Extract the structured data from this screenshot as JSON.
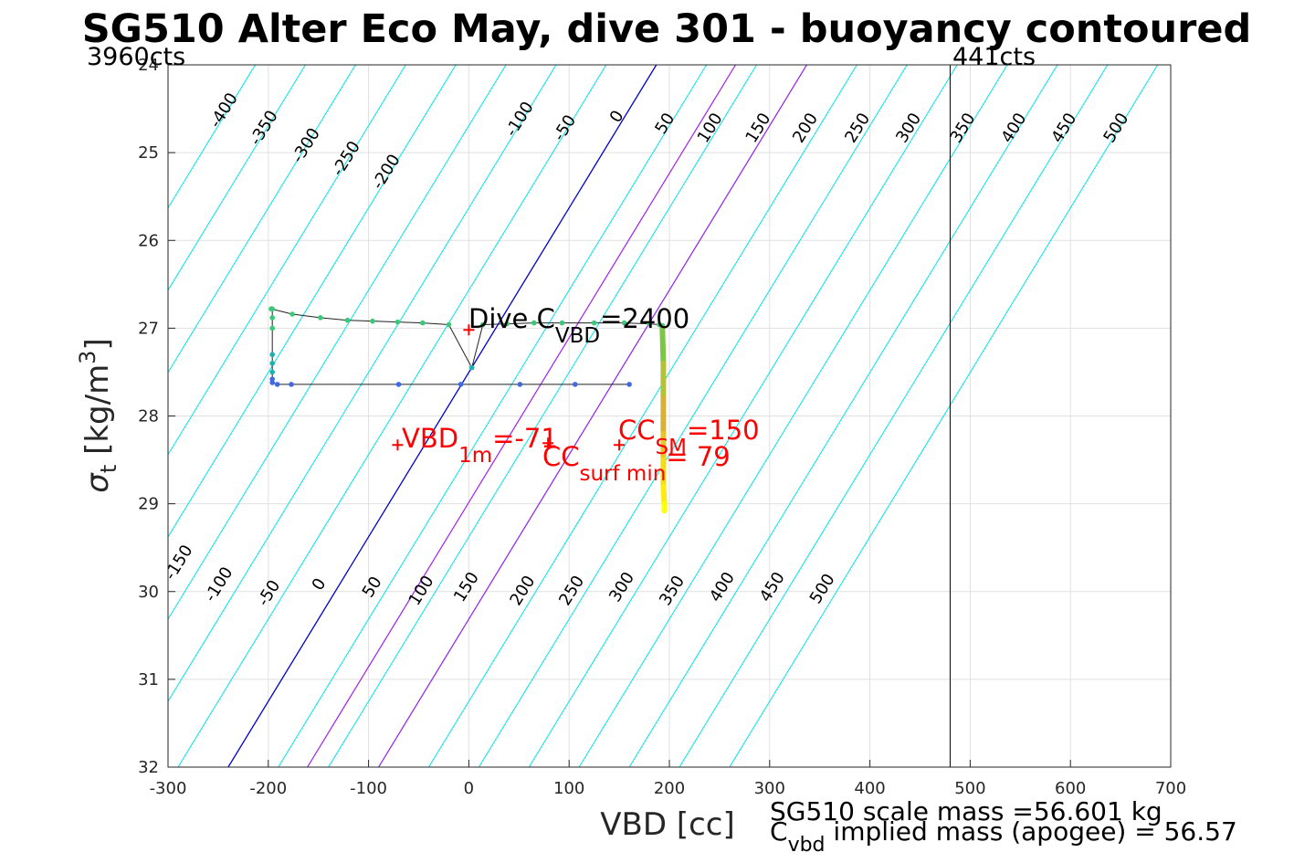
{
  "title": "SG510 Alter Eco May, dive 301 - buoyancy contoured",
  "colors": {
    "contour": "#00e5e5",
    "zero_contour": "#0000cc",
    "highlight_contour": "#a020f0",
    "red": "#ff0000",
    "profile_line": "#222222",
    "vertical_line": "#000000"
  },
  "chart_data": {
    "type": "line",
    "xlabel": "VBD [cc]",
    "ylabel": "σt [kg/m3]",
    "ylabel_parts": {
      "sigma": "σ",
      "sub": "t",
      "unit": " [kg/m",
      "sup": "3",
      "close": "]"
    },
    "xlim": [
      -300,
      700
    ],
    "ylim": [
      24,
      32
    ],
    "y_reversed": true,
    "grid": true,
    "xticks": [
      -300,
      -200,
      -100,
      0,
      100,
      200,
      300,
      400,
      500,
      600,
      700
    ],
    "yticks": [
      24,
      25,
      26,
      27,
      28,
      29,
      30,
      31,
      32
    ],
    "top_left_label": "3960cts",
    "top_right_label": "441cts",
    "vertical_line_x": 480,
    "contours": {
      "levels": [
        -400,
        -350,
        -300,
        -250,
        -200,
        -150,
        -100,
        -50,
        0,
        50,
        100,
        150,
        200,
        250,
        300,
        350,
        400,
        450,
        500
      ],
      "highlight_levels": [
        79,
        150
      ],
      "zero_at_sigma_top": 187,
      "zero_at_sigma_bottom": -240,
      "upper_labels": [
        {
          "text": "-400",
          "x": -240,
          "y": 24.55
        },
        {
          "text": "-350",
          "x": -200,
          "y": 24.75
        },
        {
          "text": "-300",
          "x": -158,
          "y": 24.95
        },
        {
          "text": "-250",
          "x": -118,
          "y": 25.1
        },
        {
          "text": "-200",
          "x": -78,
          "y": 25.25
        },
        {
          "text": "-100",
          "x": 55,
          "y": 24.65
        },
        {
          "text": "-50",
          "x": 100,
          "y": 24.75
        },
        {
          "text": "0",
          "x": 152,
          "y": 24.62
        },
        {
          "text": "50",
          "x": 200,
          "y": 24.7
        },
        {
          "text": "100",
          "x": 245,
          "y": 24.75
        },
        {
          "text": "150",
          "x": 293,
          "y": 24.75
        },
        {
          "text": "200",
          "x": 340,
          "y": 24.75
        },
        {
          "text": "250",
          "x": 392,
          "y": 24.75
        },
        {
          "text": "300",
          "x": 443,
          "y": 24.75
        },
        {
          "text": "350",
          "x": 497,
          "y": 24.75
        },
        {
          "text": "400",
          "x": 548,
          "y": 24.75
        },
        {
          "text": "450",
          "x": 598,
          "y": 24.75
        },
        {
          "text": "500",
          "x": 650,
          "y": 24.75
        }
      ],
      "lower_labels": [
        {
          "text": "-150",
          "x": -285,
          "y": 29.7
        },
        {
          "text": "-100",
          "x": -245,
          "y": 29.95
        },
        {
          "text": "-50",
          "x": -195,
          "y": 30.05
        },
        {
          "text": "0",
          "x": -145,
          "y": 29.95
        },
        {
          "text": "50",
          "x": -92,
          "y": 29.98
        },
        {
          "text": "100",
          "x": -43,
          "y": 30.02
        },
        {
          "text": "150",
          "x": 2,
          "y": 29.98
        },
        {
          "text": "200",
          "x": 58,
          "y": 30.02
        },
        {
          "text": "250",
          "x": 107,
          "y": 30.02
        },
        {
          "text": "300",
          "x": 157,
          "y": 29.98
        },
        {
          "text": "350",
          "x": 207,
          "y": 30.02
        },
        {
          "text": "400",
          "x": 257,
          "y": 29.98
        },
        {
          "text": "450",
          "x": 307,
          "y": 29.98
        },
        {
          "text": "500",
          "x": 357,
          "y": 30.0
        }
      ]
    },
    "series": [
      {
        "name": "dive profile",
        "x": [
          160,
          106,
          51,
          -8,
          -70,
          -177,
          -191,
          -196,
          -196,
          -196,
          -196,
          -196,
          -196,
          -196,
          -196,
          -197,
          -197,
          -176,
          -148,
          -121,
          -96,
          -71,
          -46,
          -20,
          3,
          14,
          38,
          65,
          93,
          125,
          155,
          180,
          190,
          193
        ],
        "y": [
          27.64,
          27.64,
          27.64,
          27.64,
          27.64,
          27.64,
          27.64,
          27.62,
          27.58,
          27.5,
          27.4,
          27.3,
          27.0,
          26.88,
          26.78,
          26.78,
          26.78,
          26.84,
          26.88,
          26.91,
          26.92,
          26.93,
          26.94,
          26.96,
          27.45,
          26.96,
          26.95,
          26.94,
          26.94,
          26.94,
          26.94,
          26.95,
          26.96,
          26.97
        ]
      },
      {
        "name": "near-surface trace",
        "x": [
          193,
          194,
          194,
          194,
          194,
          194,
          195,
          195
        ],
        "y": [
          27.0,
          27.4,
          27.8,
          28.2,
          28.5,
          28.8,
          29.0,
          29.08
        ],
        "colors": [
          "#7cc646",
          "#b5c138",
          "#d8b13a",
          "#e8c52a",
          "#f3dc19",
          "#fbeb10",
          "#ffff00",
          "#ffff00"
        ]
      }
    ],
    "markers": [
      {
        "x": 0,
        "y": 27.02,
        "color": "#ff0000"
      },
      {
        "x": -71,
        "y": 28.33,
        "color": "#ff0000"
      },
      {
        "x": 150,
        "y": 28.33,
        "color": "#ff0000"
      },
      {
        "x": 79,
        "y": 28.31,
        "color": "#ff0000"
      }
    ],
    "annotations": [
      {
        "id": "dive_cvbd",
        "main": "Dive C",
        "sub": "VBD",
        "tail": "=2400",
        "color": "#000000"
      },
      {
        "id": "vbd_1m",
        "main": "VBD",
        "sub": "1m",
        "tail": "=-71",
        "color": "#ff0000"
      },
      {
        "id": "cc_sm",
        "main": "CC",
        "sub": "SM",
        "tail": "=150",
        "color": "#ff0000"
      },
      {
        "id": "cc_surf",
        "main": "CC",
        "sub": "surf min",
        "tail": "= 79",
        "color": "#ff0000"
      }
    ]
  },
  "footer": {
    "scale_mass": "SG510 scale mass =56.601 kg",
    "implied_mass_prefix": "C",
    "implied_mass_sub": "vbd",
    "implied_mass_tail": " implied mass (apogee) = 56.57"
  }
}
